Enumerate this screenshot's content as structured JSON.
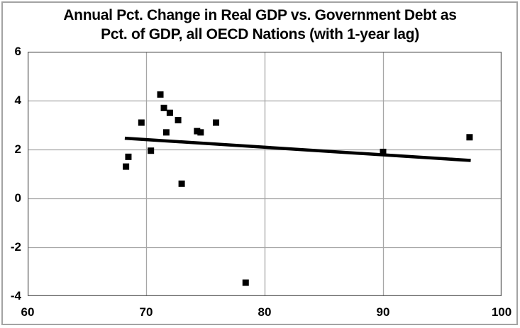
{
  "chart_data": {
    "type": "scatter",
    "title_line1": "Annual Pct. Change in Real GDP vs. Government Debt as",
    "title_line2": "Pct. of GDP, all OECD Nations (with 1-year lag)",
    "xlabel": "",
    "ylabel": "",
    "xlim": [
      60,
      100
    ],
    "ylim": [
      -4,
      6
    ],
    "xticks": [
      60,
      70,
      80,
      90,
      100
    ],
    "yticks": [
      6,
      4,
      2,
      0,
      -2,
      -4
    ],
    "grid": true,
    "legend": "none",
    "marker": {
      "shape": "square",
      "size": 9,
      "color": "#000000"
    },
    "points": [
      {
        "x": 68.3,
        "y": 1.3
      },
      {
        "x": 68.5,
        "y": 1.7
      },
      {
        "x": 69.6,
        "y": 3.1
      },
      {
        "x": 70.4,
        "y": 1.95
      },
      {
        "x": 71.2,
        "y": 4.25
      },
      {
        "x": 71.5,
        "y": 3.7
      },
      {
        "x": 71.7,
        "y": 2.7
      },
      {
        "x": 72.0,
        "y": 3.5
      },
      {
        "x": 72.7,
        "y": 3.2
      },
      {
        "x": 73.0,
        "y": 0.6
      },
      {
        "x": 74.3,
        "y": 2.75
      },
      {
        "x": 74.6,
        "y": 2.7
      },
      {
        "x": 75.9,
        "y": 3.1
      },
      {
        "x": 78.4,
        "y": -3.45
      },
      {
        "x": 90.0,
        "y": 1.9
      },
      {
        "x": 97.3,
        "y": 2.5
      }
    ],
    "trendline": {
      "x1": 68.2,
      "y1": 2.46,
      "x2": 97.4,
      "y2": 1.55,
      "color": "#000000",
      "width": 4.5
    }
  },
  "colors": {
    "background": "#ffffff",
    "gridline": "#a6a6a6",
    "plot_border": "#595959",
    "outer_border": "#a3a3a3",
    "text": "#000000"
  }
}
